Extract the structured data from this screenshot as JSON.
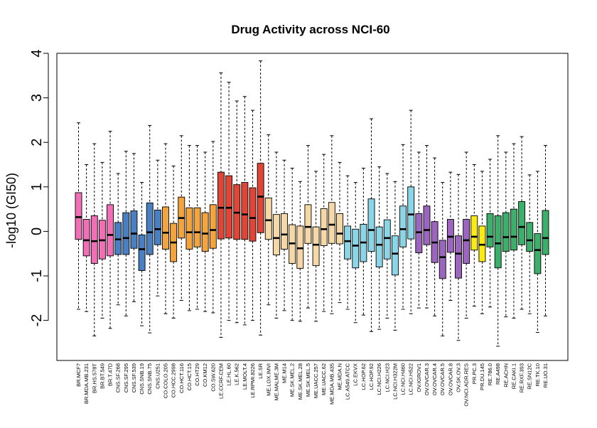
{
  "chart_data": {
    "type": "boxplot",
    "title": "Drug Activity across NCI-60",
    "xlabel": "",
    "ylabel": "-log10 (GI50)",
    "ylim": [
      -2.9,
      4.0
    ],
    "yticks": [
      -2,
      -1,
      0,
      1,
      2,
      3,
      4
    ],
    "whisker_style": "dashed",
    "median_style": "thick-black",
    "categories": [
      "BR.MCF7",
      "BR.MDA.MB.231",
      "BR.HS.578T",
      "BR.BT.549",
      "BR.T.47D",
      "CNS.SF.268",
      "CNS.SF.295",
      "CNS.SF.539",
      "CNS.SNB.19",
      "CNS.SNB.75",
      "CNS.U251",
      "CO.COLO.205",
      "CO.HCC.2998",
      "CO.HCT.116",
      "CO.HCT.15",
      "CO.HT29",
      "CO.KM12",
      "CO.SW.620",
      "LE.CCRF.CEM",
      "LE.HL.60",
      "LE.K.562",
      "LE.MOLT.4",
      "LE.RPMI.8226",
      "LE.SR",
      "ME.LOX.IMVI",
      "ME.MALME.3M",
      "ME.M14",
      "ME.SK.MEL.2",
      "ME.SK.MEL.28",
      "ME.SK.MEL.5",
      "ME.UACC.257",
      "ME.UACC.62",
      "ME.MDA.MB.435",
      "ME.MDA.N",
      "LC.A549.ATCC",
      "LC.EKVX",
      "LC.HOP.62",
      "LC.HOP.92",
      "LC.NCI.H226",
      "LC.NCI.H23",
      "LC.NCI.H322M",
      "LC.NCI.H460",
      "LC.NCI.H522",
      "OV.IGROV1",
      "OV.OVCAR.3",
      "OV.OVCAR.4",
      "OV.OVCAR.5",
      "OV.OVCAR.8",
      "OV.SK.OV.3",
      "OV.NCI.ADR.RES",
      "PR.PC.3",
      "PR.DU.145",
      "RE.786.0",
      "RE.A498",
      "RE.ACHN",
      "RE.CAKI.1",
      "RE.RXF.393",
      "RE.SN12C",
      "RE.TK.10",
      "RE.UO.31"
    ],
    "series": [
      {
        "values": [
          {
            "min": -1.75,
            "q1": -0.18,
            "median": 0.32,
            "q3": 0.87,
            "max": 2.44
          },
          {
            "min": -1.8,
            "q1": -0.55,
            "median": -0.2,
            "q3": 0.27,
            "max": 1.5
          },
          {
            "min": -2.35,
            "q1": -0.72,
            "median": -0.22,
            "q3": 0.35,
            "max": 1.97
          },
          {
            "min": -1.95,
            "q1": -0.62,
            "median": -0.2,
            "q3": 0.25,
            "max": 1.55
          },
          {
            "min": -2.18,
            "q1": -0.55,
            "median": -0.08,
            "q3": 0.6,
            "max": 2.25
          },
          {
            "min": -1.65,
            "q1": -0.52,
            "median": -0.18,
            "q3": 0.2,
            "max": 1.3
          },
          {
            "min": -1.9,
            "q1": -0.52,
            "median": -0.15,
            "q3": 0.42,
            "max": 1.8
          },
          {
            "min": -1.58,
            "q1": -0.38,
            "median": -0.05,
            "q3": 0.46,
            "max": 1.75
          },
          {
            "min": -2.12,
            "q1": -0.88,
            "median": -0.4,
            "q3": -0.08,
            "max": 1.1
          },
          {
            "min": -2.28,
            "q1": -0.52,
            "median": -0.02,
            "q3": 0.64,
            "max": 2.38
          },
          {
            "min": -1.45,
            "q1": -0.3,
            "median": 0.05,
            "q3": 0.48,
            "max": 1.6
          },
          {
            "min": -1.85,
            "q1": -0.4,
            "median": -0.03,
            "q3": 0.55,
            "max": 1.97
          },
          {
            "min": -1.95,
            "q1": -0.68,
            "median": -0.25,
            "q3": 0.18,
            "max": 1.47
          },
          {
            "min": -1.55,
            "q1": -0.15,
            "median": 0.3,
            "q3": 0.77,
            "max": 2.15
          },
          {
            "min": -1.78,
            "q1": -0.4,
            "median": -0.02,
            "q3": 0.53,
            "max": 1.93
          },
          {
            "min": -1.75,
            "q1": -0.35,
            "median": -0.02,
            "q3": 0.53,
            "max": 1.93
          },
          {
            "min": -1.8,
            "q1": -0.45,
            "median": -0.05,
            "q3": 0.42,
            "max": 1.78
          },
          {
            "min": -1.83,
            "q1": -0.38,
            "median": 0.03,
            "q3": 0.6,
            "max": 2.02
          },
          {
            "min": -2.38,
            "q1": -0.17,
            "median": 0.53,
            "q3": 1.33,
            "max": 3.56
          },
          {
            "min": -2.0,
            "q1": -0.15,
            "median": 0.53,
            "q3": 1.25,
            "max": 3.35
          },
          {
            "min": -2.05,
            "q1": -0.18,
            "median": 0.42,
            "q3": 1.05,
            "max": 2.93
          },
          {
            "min": -2.1,
            "q1": -0.18,
            "median": 0.38,
            "q3": 1.1,
            "max": 3.03
          },
          {
            "min": -2.0,
            "q1": -0.22,
            "median": 0.3,
            "q3": 0.98,
            "max": 2.72
          },
          {
            "min": -2.33,
            "q1": -0.03,
            "median": 0.78,
            "q3": 1.53,
            "max": 3.83
          },
          {
            "min": -1.65,
            "q1": -0.18,
            "median": 0.25,
            "q3": 0.75,
            "max": 2.17
          },
          {
            "min": -1.95,
            "q1": -0.53,
            "median": -0.15,
            "q3": 0.38,
            "max": 1.78
          },
          {
            "min": -1.78,
            "q1": -0.4,
            "median": -0.07,
            "q3": 0.4,
            "max": 1.6
          },
          {
            "min": -2.0,
            "q1": -0.72,
            "median": -0.27,
            "q3": 0.15,
            "max": 1.42
          },
          {
            "min": -2.02,
            "q1": -0.83,
            "median": -0.38,
            "q3": 0.12,
            "max": 1.12
          },
          {
            "min": -1.72,
            "q1": -0.27,
            "median": 0.1,
            "q3": 0.6,
            "max": 1.93
          },
          {
            "min": -2.02,
            "q1": -0.77,
            "median": -0.3,
            "q3": 0.1,
            "max": 1.35
          },
          {
            "min": -1.8,
            "q1": -0.32,
            "median": 0.05,
            "q3": 0.51,
            "max": 1.73
          },
          {
            "min": -1.85,
            "q1": -0.27,
            "median": 0.15,
            "q3": 0.65,
            "max": 2.15
          },
          {
            "min": -1.6,
            "q1": -0.28,
            "median": -0.05,
            "q3": 0.4,
            "max": 1.55
          },
          {
            "min": -1.75,
            "q1": -0.62,
            "median": -0.22,
            "q3": 0.12,
            "max": 1.25
          },
          {
            "min": -2.05,
            "q1": -0.82,
            "median": -0.32,
            "q3": 0.05,
            "max": 1.1
          },
          {
            "min": -1.88,
            "q1": -0.68,
            "median": -0.25,
            "q3": 0.16,
            "max": 1.42
          },
          {
            "min": -2.25,
            "q1": -0.45,
            "median": 0.03,
            "q3": 0.73,
            "max": 2.53
          },
          {
            "min": -2.2,
            "q1": -0.8,
            "median": -0.3,
            "q3": 0.1,
            "max": 1.45
          },
          {
            "min": -1.95,
            "q1": -0.62,
            "median": -0.15,
            "q3": 0.26,
            "max": 1.3
          },
          {
            "min": -2.22,
            "q1": -0.98,
            "median": -0.5,
            "q3": -0.1,
            "max": 1.12
          },
          {
            "min": -1.75,
            "q1": -0.35,
            "median": 0.05,
            "q3": 0.57,
            "max": 1.95
          },
          {
            "min": -1.85,
            "q1": -0.17,
            "median": 0.38,
            "q3": 1.0,
            "max": 2.72
          },
          {
            "min": -1.72,
            "q1": -0.48,
            "median": -0.02,
            "q3": 0.4,
            "max": 1.78
          },
          {
            "min": -1.72,
            "q1": -0.3,
            "median": 0.03,
            "q3": 0.57,
            "max": 1.93
          },
          {
            "min": -1.9,
            "q1": -0.7,
            "median": -0.25,
            "q3": 0.22,
            "max": 1.65
          },
          {
            "min": -2.35,
            "q1": -1.06,
            "median": -0.58,
            "q3": -0.2,
            "max": 1.1
          },
          {
            "min": -1.55,
            "q1": -0.47,
            "median": -0.12,
            "q3": 0.27,
            "max": 1.33
          },
          {
            "min": -2.45,
            "q1": -1.05,
            "median": -0.5,
            "q3": -0.1,
            "max": 1.28
          },
          {
            "min": -1.95,
            "q1": -0.72,
            "median": -0.2,
            "q3": 0.27,
            "max": 1.78
          },
          {
            "min": -1.68,
            "q1": -0.42,
            "median": -0.12,
            "q3": 0.35,
            "max": 1.5
          },
          {
            "min": -1.85,
            "q1": -0.68,
            "median": -0.3,
            "q3": 0.12,
            "max": 1.35
          },
          {
            "min": -1.7,
            "q1": -0.35,
            "median": -0.12,
            "q3": 0.4,
            "max": 1.62
          },
          {
            "min": -2.58,
            "q1": -0.82,
            "median": -0.27,
            "q3": 0.35,
            "max": 2.15
          },
          {
            "min": -1.92,
            "q1": -0.45,
            "median": -0.13,
            "q3": 0.42,
            "max": 1.78
          },
          {
            "min": -1.95,
            "q1": -0.42,
            "median": -0.12,
            "q3": 0.5,
            "max": 1.97
          },
          {
            "min": -1.75,
            "q1": -0.3,
            "median": 0.1,
            "q3": 0.67,
            "max": 2.13
          },
          {
            "min": -1.85,
            "q1": -0.45,
            "median": -0.2,
            "q3": 0.2,
            "max": 1.27
          },
          {
            "min": -2.27,
            "q1": -0.95,
            "median": -0.42,
            "q3": -0.05,
            "max": 1.35
          },
          {
            "min": -1.9,
            "q1": -0.52,
            "median": -0.15,
            "q3": 0.47,
            "max": 1.93
          }
        ]
      }
    ],
    "groups": [
      {
        "prefix": "BR",
        "color": "#f06fb7",
        "count": 5
      },
      {
        "prefix": "CNS",
        "color": "#4a7fc1",
        "count": 6
      },
      {
        "prefix": "CO",
        "color": "#f4a43e",
        "count": 7
      },
      {
        "prefix": "LE",
        "color": "#e04535",
        "count": 6
      },
      {
        "prefix": "ME",
        "color": "#f6d8a6",
        "count": 10
      },
      {
        "prefix": "LC",
        "color": "#8bd6e6",
        "count": 9
      },
      {
        "prefix": "OV",
        "color": "#9c66bf",
        "count": 7
      },
      {
        "prefix": "PR",
        "color": "#f9eb13",
        "count": 2
      },
      {
        "prefix": "RE",
        "color": "#3caf6a",
        "count": 8
      }
    ]
  }
}
